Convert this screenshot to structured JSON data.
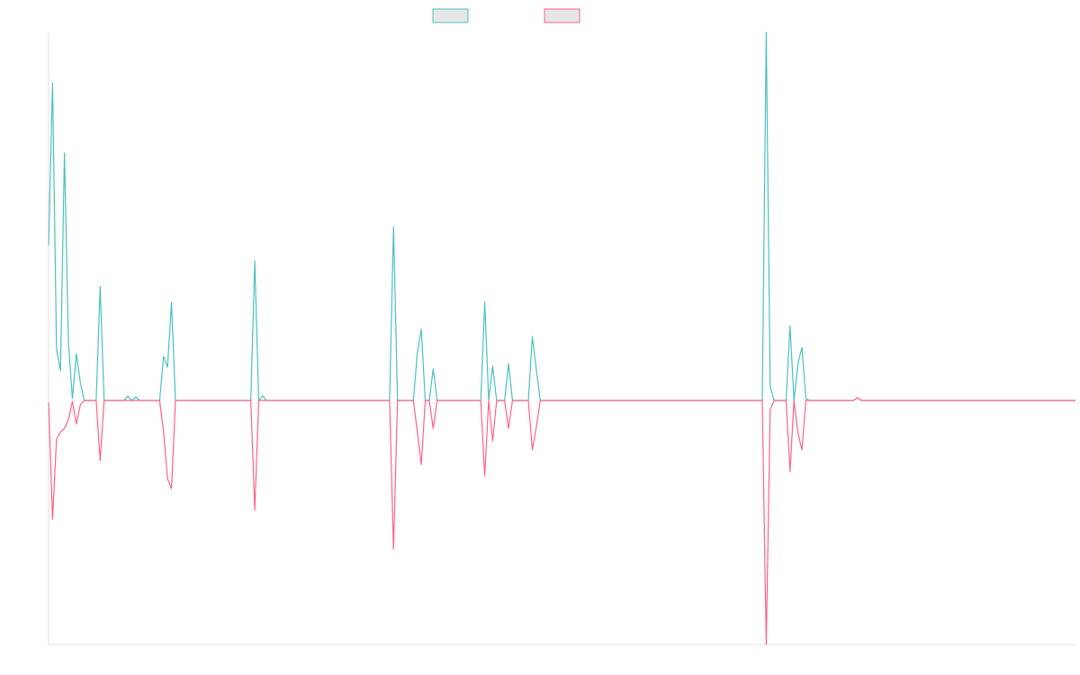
{
  "chart_data": {
    "type": "line",
    "series": [
      {
        "color": "#4bc0c0",
        "values": [
          172,
          353,
          57,
          33,
          275,
          65,
          2,
          52,
          20,
          0,
          0,
          0,
          0,
          127,
          0,
          0,
          0,
          0,
          0,
          0,
          5,
          0,
          4,
          0,
          0,
          0,
          0,
          0,
          0,
          49,
          37,
          109,
          0,
          0,
          0,
          0,
          0,
          0,
          0,
          0,
          0,
          0,
          0,
          0,
          0,
          0,
          0,
          0,
          0,
          0,
          0,
          0,
          155,
          0,
          5,
          0,
          0,
          0,
          0,
          0,
          0,
          0,
          0,
          0,
          0,
          0,
          0,
          0,
          0,
          0,
          0,
          0,
          0,
          0,
          0,
          0,
          0,
          0,
          0,
          0,
          0,
          0,
          0,
          0,
          0,
          0,
          0,
          193,
          0,
          0,
          0,
          0,
          0,
          53,
          79,
          0,
          0,
          35,
          0,
          0,
          0,
          0,
          0,
          0,
          0,
          0,
          0,
          0,
          0,
          0,
          109,
          0,
          38,
          0,
          0,
          0,
          41,
          0,
          0,
          0,
          0,
          0,
          71,
          35,
          0,
          0,
          0,
          0,
          0,
          0,
          0,
          0,
          0,
          0,
          0,
          0,
          0,
          0,
          0,
          0,
          0,
          0,
          0,
          0,
          0,
          0,
          0,
          0,
          0,
          0,
          0,
          0,
          0,
          0,
          0,
          0,
          0,
          0,
          0,
          0,
          0,
          0,
          0,
          0,
          0,
          0,
          0,
          0,
          0,
          0,
          0,
          0,
          0,
          0,
          0,
          0,
          0,
          0,
          0,
          0,
          0,
          409,
          15,
          0,
          0,
          0,
          0,
          83,
          0,
          41,
          59,
          2,
          0,
          0,
          0,
          0,
          0,
          0,
          0,
          0,
          0,
          0,
          0,
          0,
          3,
          0,
          0,
          0,
          0,
          0,
          0,
          0,
          0,
          0,
          0,
          0,
          0,
          0,
          0,
          0,
          0,
          0,
          0,
          0,
          0,
          0,
          0,
          0,
          0,
          0,
          0,
          0,
          0,
          0,
          0,
          0,
          0,
          0,
          0,
          0,
          0,
          0,
          0,
          0,
          0,
          0,
          0,
          0,
          0,
          0,
          0,
          0,
          0,
          0,
          0,
          0,
          0,
          0,
          0,
          0
        ]
      },
      {
        "color": "#ff6384",
        "values": [
          -2,
          -132,
          -43,
          -35,
          -31,
          -21,
          -1,
          -26,
          -5,
          0,
          0,
          0,
          0,
          -67,
          0,
          0,
          0,
          0,
          0,
          0,
          0,
          0,
          0,
          0,
          0,
          0,
          0,
          0,
          0,
          -35,
          -87,
          -98,
          0,
          0,
          0,
          0,
          0,
          0,
          0,
          0,
          0,
          0,
          0,
          0,
          0,
          0,
          0,
          0,
          0,
          0,
          0,
          0,
          -122,
          0,
          0,
          0,
          0,
          0,
          0,
          0,
          0,
          0,
          0,
          0,
          0,
          0,
          0,
          0,
          0,
          0,
          0,
          0,
          0,
          0,
          0,
          0,
          0,
          0,
          0,
          0,
          0,
          0,
          0,
          0,
          0,
          0,
          0,
          -165,
          0,
          0,
          0,
          0,
          0,
          -35,
          -71,
          0,
          0,
          -31,
          0,
          0,
          0,
          0,
          0,
          0,
          0,
          0,
          0,
          0,
          0,
          0,
          -84,
          0,
          -45,
          0,
          0,
          0,
          -31,
          0,
          0,
          0,
          0,
          0,
          -55,
          -30,
          0,
          0,
          0,
          0,
          0,
          0,
          0,
          0,
          0,
          0,
          0,
          0,
          0,
          0,
          0,
          0,
          0,
          0,
          0,
          0,
          0,
          0,
          0,
          0,
          0,
          0,
          0,
          0,
          0,
          0,
          0,
          0,
          0,
          0,
          0,
          0,
          0,
          0,
          0,
          0,
          0,
          0,
          0,
          0,
          0,
          0,
          0,
          0,
          0,
          0,
          0,
          0,
          0,
          0,
          0,
          0,
          0,
          -271,
          -10,
          0,
          0,
          0,
          0,
          -79,
          0,
          -36,
          -55,
          0,
          0,
          0,
          0,
          0,
          0,
          0,
          0,
          0,
          0,
          0,
          0,
          0,
          3,
          0,
          0,
          0,
          0,
          0,
          0,
          0,
          0,
          0,
          0,
          0,
          0,
          0,
          0,
          0,
          0,
          0,
          0,
          0,
          0,
          0,
          0,
          0,
          0,
          0,
          0,
          0,
          0,
          0,
          0,
          0,
          0,
          0,
          0,
          0,
          0,
          0,
          0,
          0,
          0,
          0,
          0,
          0,
          0,
          0,
          0,
          0,
          0,
          0,
          0,
          0,
          0,
          0,
          0,
          0
        ]
      }
    ],
    "ylim": [
      -271,
      409
    ]
  }
}
